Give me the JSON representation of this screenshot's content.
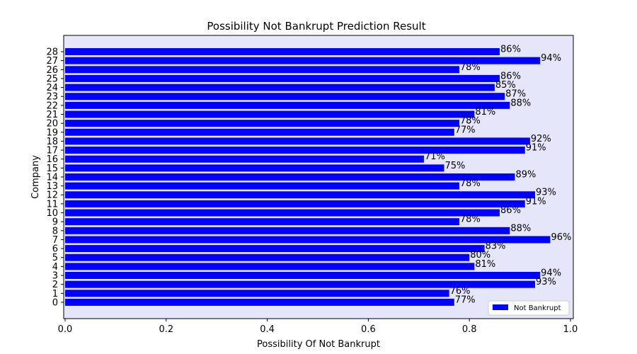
{
  "chart_data": {
    "type": "bar",
    "orientation": "horizontal",
    "title": "Possibility Not Bankrupt Prediction Result",
    "xlabel": "Possibility Of Not Bankrupt",
    "ylabel": "Company",
    "xlim": [
      0,
      1
    ],
    "x_ticks": [
      "0.0",
      "0.2",
      "0.4",
      "0.6",
      "0.8",
      "1.0"
    ],
    "categories": [
      "0",
      "1",
      "2",
      "3",
      "4",
      "5",
      "6",
      "7",
      "8",
      "9",
      "10",
      "11",
      "12",
      "13",
      "14",
      "15",
      "16",
      "17",
      "18",
      "19",
      "20",
      "21",
      "22",
      "23",
      "24",
      "25",
      "26",
      "27",
      "28"
    ],
    "series": [
      {
        "name": "Not Bankrupt",
        "color": "#0000ff",
        "values": [
          0.77,
          0.76,
          0.93,
          0.94,
          0.81,
          0.8,
          0.83,
          0.96,
          0.88,
          0.78,
          0.86,
          0.91,
          0.93,
          0.78,
          0.89,
          0.75,
          0.71,
          0.91,
          0.92,
          0.77,
          0.78,
          0.81,
          0.88,
          0.87,
          0.85,
          0.86,
          0.78,
          0.94,
          0.86
        ],
        "labels": [
          "77%",
          "76%",
          "93%",
          "94%",
          "81%",
          "80%",
          "83%",
          "96%",
          "88%",
          "78%",
          "86%",
          "91%",
          "93%",
          "78%",
          "89%",
          "75%",
          "71%",
          "91%",
          "92%",
          "77%",
          "78%",
          "81%",
          "88%",
          "87%",
          "85%",
          "86%",
          "78%",
          "94%",
          "86%"
        ]
      }
    ],
    "legend": {
      "position": "lower-right",
      "entries": [
        "Not Bankrupt"
      ]
    },
    "grid": false,
    "plot_background": "#e6e6fa"
  }
}
